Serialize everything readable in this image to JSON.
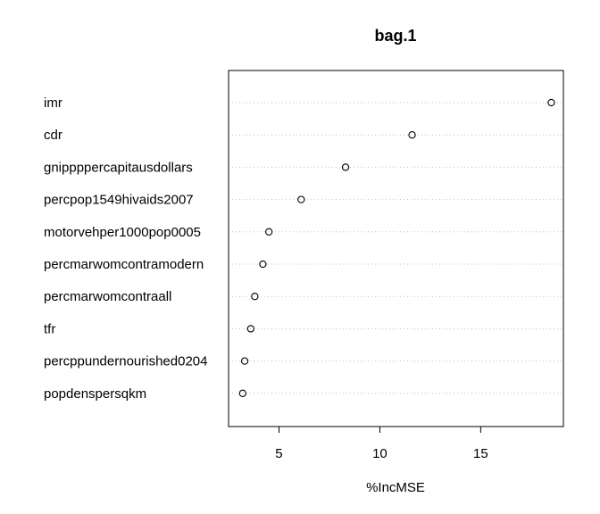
{
  "chart_data": {
    "type": "scatter",
    "title": "bag.1",
    "xlabel": "%IncMSE",
    "ylabel": "",
    "xticks": [
      5,
      10,
      15
    ],
    "xlim": [
      2.5,
      19.1
    ],
    "grid": "horizontal-dotted",
    "marker": "open-circle",
    "categories": [
      "imr",
      "cdr",
      "gnippppercapitausdollars",
      "percpop1549hivaids2007",
      "motorvehper1000pop0005",
      "percmarwomcontramodern",
      "percmarwomcontraall",
      "tfr",
      "percppundernourished0204",
      "popdenspersqkm"
    ],
    "values": [
      18.5,
      11.6,
      8.3,
      6.1,
      4.5,
      4.2,
      3.8,
      3.6,
      3.3,
      3.2
    ]
  },
  "colors": {
    "points": "#000000",
    "grid": "#bebebe",
    "frame": "#000000"
  }
}
